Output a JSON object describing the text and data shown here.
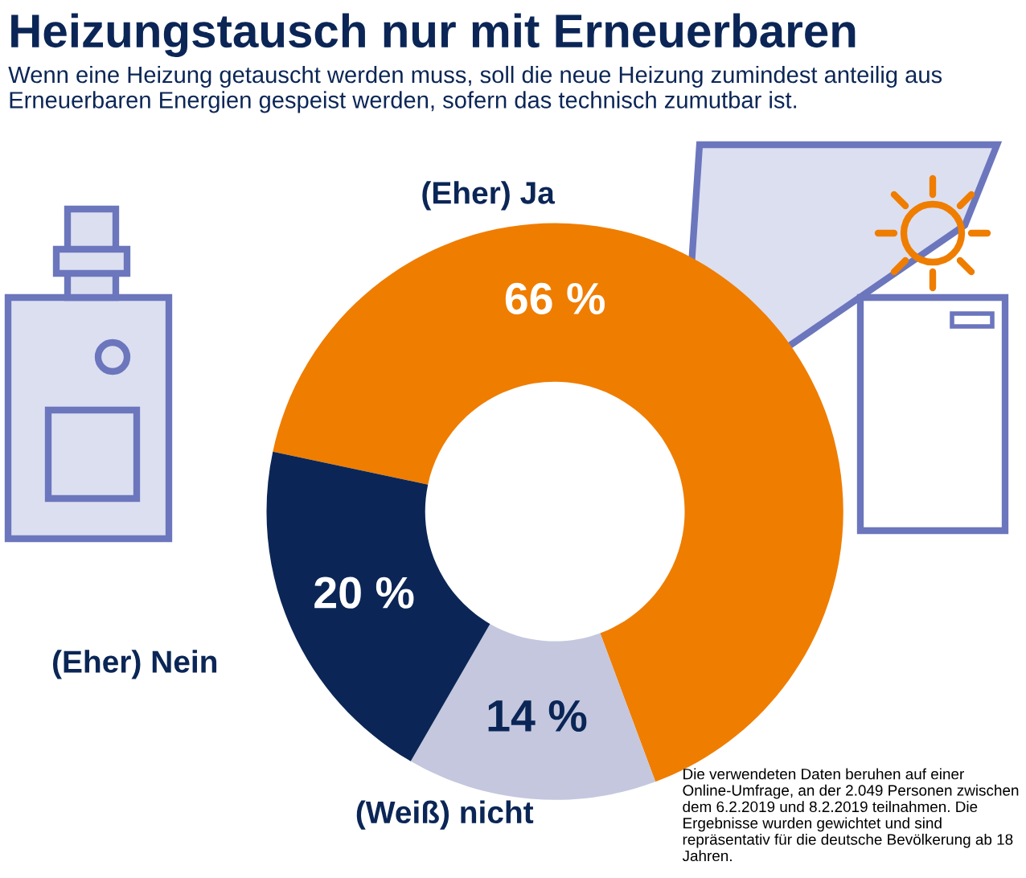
{
  "chart_data": {
    "type": "donut",
    "title": "Heizungstausch nur mit Erneuerbaren",
    "subtitle": "Wenn eine Heizung getauscht werden muss, soll die neue Heizung zumindest anteilig aus Erneuerbaren Energien gespeist werden, sofern das technisch zumutbar ist.",
    "categories": [
      "(Eher) Ja",
      "(Weiß) nicht",
      "(Eher) Nein"
    ],
    "values": [
      66,
      14,
      20
    ],
    "colors": [
      "#ef7d00",
      "#c4c7de",
      "#0b2656"
    ],
    "value_labels": [
      "66 %",
      "14 %",
      "20 %"
    ],
    "annotations": [
      "Die verwendeten Daten beruhen auf einer Online-Umfrage, an der 2.049 Personen zwischen dem 6.2.2019 und 8.2.2019 teilnahmen. Die Ergebnisse wurden gewichtet und sind repräsentativ für die deutsche Bevölkerung ab 18 Jahren."
    ]
  }
}
